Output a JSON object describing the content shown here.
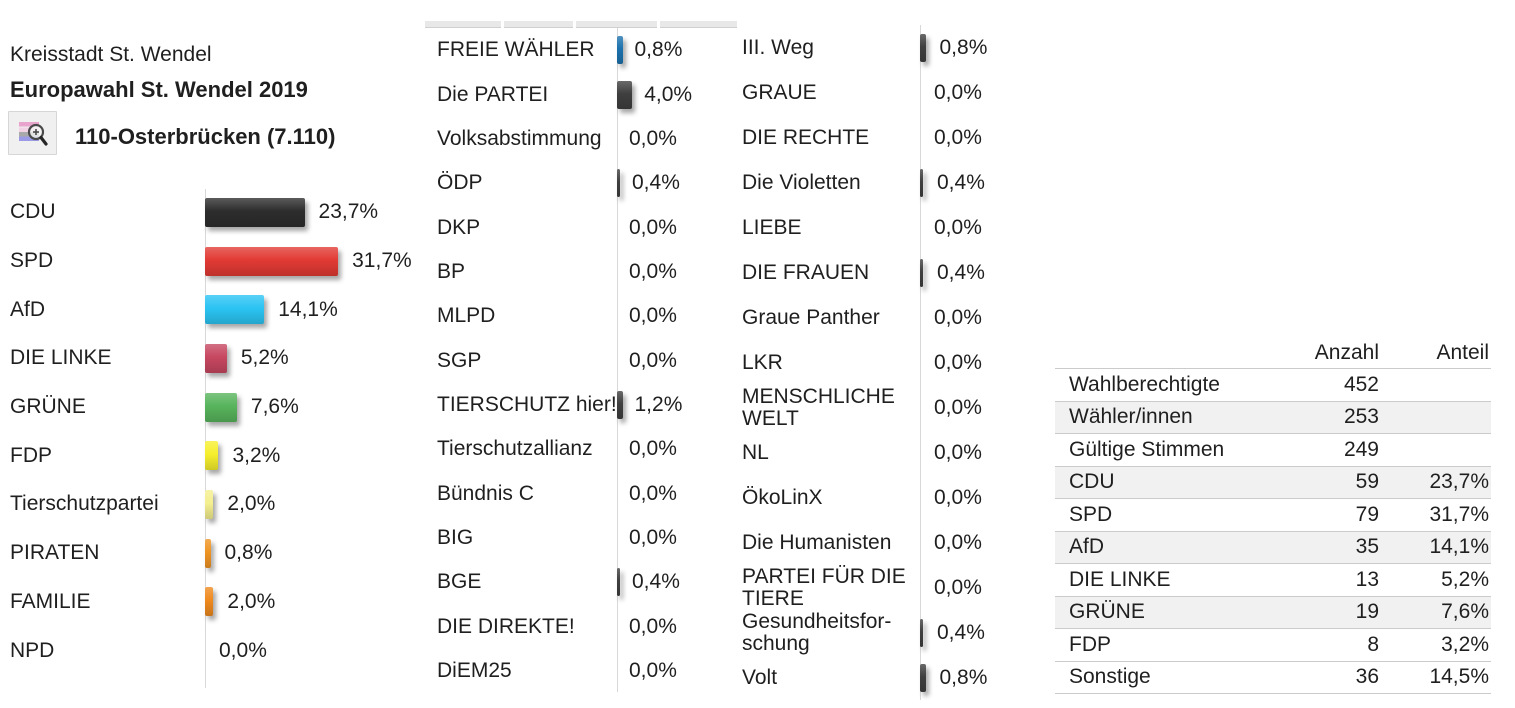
{
  "header": {
    "municipality": "Kreisstadt St. Wendel",
    "election_title": "Europawahl St. Wendel 2019",
    "district": "110-Osterbrücken (7.110)",
    "detail_button_icon": "bar-chart-magnifier-icon"
  },
  "chart_data": {
    "type": "bar",
    "orientation": "horizontal",
    "value_unit": "percent",
    "title": "Europawahl St. Wendel 2019 — 110-Osterbrücken (7.110)",
    "xlim": [
      0,
      35
    ],
    "grid": false,
    "columns": [
      {
        "items": [
          {
            "label": "CDU",
            "value": 23.7,
            "display": "23,7%",
            "color": "#2d2d2d"
          },
          {
            "label": "SPD",
            "value": 31.7,
            "display": "31,7%",
            "color": "#e23a34"
          },
          {
            "label": "AfD",
            "value": 14.1,
            "display": "14,1%",
            "color": "#2bc4f3"
          },
          {
            "label": "DIE LINKE",
            "value": 5.2,
            "display": "5,2%",
            "color": "#c64760"
          },
          {
            "label": "GRÜNE",
            "value": 7.6,
            "display": "7,6%",
            "color": "#57b45c"
          },
          {
            "label": "FDP",
            "value": 3.2,
            "display": "3,2%",
            "color": "#f6ef2d"
          },
          {
            "label": "Tierschutzpartei",
            "value": 2.0,
            "display": "2,0%",
            "color": "#f4ef8e"
          },
          {
            "label": "PIRATEN",
            "value": 0.8,
            "display": "0,8%",
            "color": "#ef9423"
          },
          {
            "label": "FAMILIE",
            "value": 2.0,
            "display": "2,0%",
            "color": "#ef8a1e"
          },
          {
            "label": "NPD",
            "value": 0.0,
            "display": "0,0%",
            "color": "#3f3f3f"
          }
        ]
      },
      {
        "items": [
          {
            "label": "FREIE WÄHLER",
            "value": 0.8,
            "display": "0,8%",
            "color": "#1c72ae"
          },
          {
            "label": "Die PARTEI",
            "value": 4.0,
            "display": "4,0%",
            "color": "#3f3f3f"
          },
          {
            "label": "Volksabstimmung",
            "value": 0.0,
            "display": "0,0%",
            "color": "#3f3f3f"
          },
          {
            "label": "ÖDP",
            "value": 0.4,
            "display": "0,4%",
            "color": "#3f3f3f"
          },
          {
            "label": "DKP",
            "value": 0.0,
            "display": "0,0%",
            "color": "#3f3f3f"
          },
          {
            "label": "BP",
            "value": 0.0,
            "display": "0,0%",
            "color": "#3f3f3f"
          },
          {
            "label": "MLPD",
            "value": 0.0,
            "display": "0,0%",
            "color": "#3f3f3f"
          },
          {
            "label": "SGP",
            "value": 0.0,
            "display": "0,0%",
            "color": "#3f3f3f"
          },
          {
            "label": "TIERSCHUTZ hier!",
            "value": 1.2,
            "display": "1,2%",
            "color": "#3f3f3f"
          },
          {
            "label": "Tierschutzallianz",
            "value": 0.0,
            "display": "0,0%",
            "color": "#3f3f3f"
          },
          {
            "label": "Bündnis C",
            "value": 0.0,
            "display": "0,0%",
            "color": "#3f3f3f"
          },
          {
            "label": "BIG",
            "value": 0.0,
            "display": "0,0%",
            "color": "#3f3f3f"
          },
          {
            "label": "BGE",
            "value": 0.4,
            "display": "0,4%",
            "color": "#3f3f3f"
          },
          {
            "label": "DIE DIREKTE!",
            "value": 0.0,
            "display": "0,0%",
            "color": "#3f3f3f"
          },
          {
            "label": "DiEM25",
            "value": 0.0,
            "display": "0,0%",
            "color": "#3f3f3f"
          }
        ]
      },
      {
        "items": [
          {
            "label": "III. Weg",
            "value": 0.8,
            "display": "0,8%",
            "color": "#3f3f3f"
          },
          {
            "label": "GRAUE",
            "value": 0.0,
            "display": "0,0%",
            "color": "#3f3f3f"
          },
          {
            "label": "DIE RECHTE",
            "value": 0.0,
            "display": "0,0%",
            "color": "#3f3f3f"
          },
          {
            "label": "Die Violetten",
            "value": 0.4,
            "display": "0,4%",
            "color": "#3f3f3f"
          },
          {
            "label": "LIEBE",
            "value": 0.0,
            "display": "0,0%",
            "color": "#3f3f3f"
          },
          {
            "label": "DIE FRAUEN",
            "value": 0.4,
            "display": "0,4%",
            "color": "#3f3f3f"
          },
          {
            "label": "Graue Panther",
            "value": 0.0,
            "display": "0,0%",
            "color": "#3f3f3f"
          },
          {
            "label": "LKR",
            "value": 0.0,
            "display": "0,0%",
            "color": "#3f3f3f"
          },
          {
            "label": "MENSCHLICHE WELT",
            "value": 0.0,
            "display": "0,0%",
            "color": "#3f3f3f"
          },
          {
            "label": "NL",
            "value": 0.0,
            "display": "0,0%",
            "color": "#3f3f3f"
          },
          {
            "label": "ÖkoLinX",
            "value": 0.0,
            "display": "0,0%",
            "color": "#3f3f3f"
          },
          {
            "label": "Die Humanisten",
            "value": 0.0,
            "display": "0,0%",
            "color": "#3f3f3f"
          },
          {
            "label": "PARTEI FÜR DIE TIERE",
            "value": 0.0,
            "display": "0,0%",
            "color": "#3f3f3f"
          },
          {
            "label": "Gesundheitsfor-schung",
            "value": 0.4,
            "display": "0,4%",
            "color": "#3f3f3f"
          },
          {
            "label": "Volt",
            "value": 0.8,
            "display": "0,8%",
            "color": "#3f3f3f"
          }
        ]
      }
    ]
  },
  "summary_table": {
    "headers": {
      "count": "Anzahl",
      "share": "Anteil"
    },
    "rows": [
      {
        "label": "Wahlberechtigte",
        "count": "452",
        "share": ""
      },
      {
        "label": "Wähler/innen",
        "count": "253",
        "share": ""
      },
      {
        "label": "Gültige Stimmen",
        "count": "249",
        "share": ""
      },
      {
        "label": "CDU",
        "count": "59",
        "share": "23,7%"
      },
      {
        "label": "SPD",
        "count": "79",
        "share": "31,7%"
      },
      {
        "label": "AfD",
        "count": "35",
        "share": "14,1%"
      },
      {
        "label": "DIE LINKE",
        "count": "13",
        "share": "5,2%"
      },
      {
        "label": "GRÜNE",
        "count": "19",
        "share": "7,6%"
      },
      {
        "label": "FDP",
        "count": "8",
        "share": "3,2%"
      },
      {
        "label": "Sonstige",
        "count": "36",
        "share": "14,5%"
      }
    ]
  }
}
